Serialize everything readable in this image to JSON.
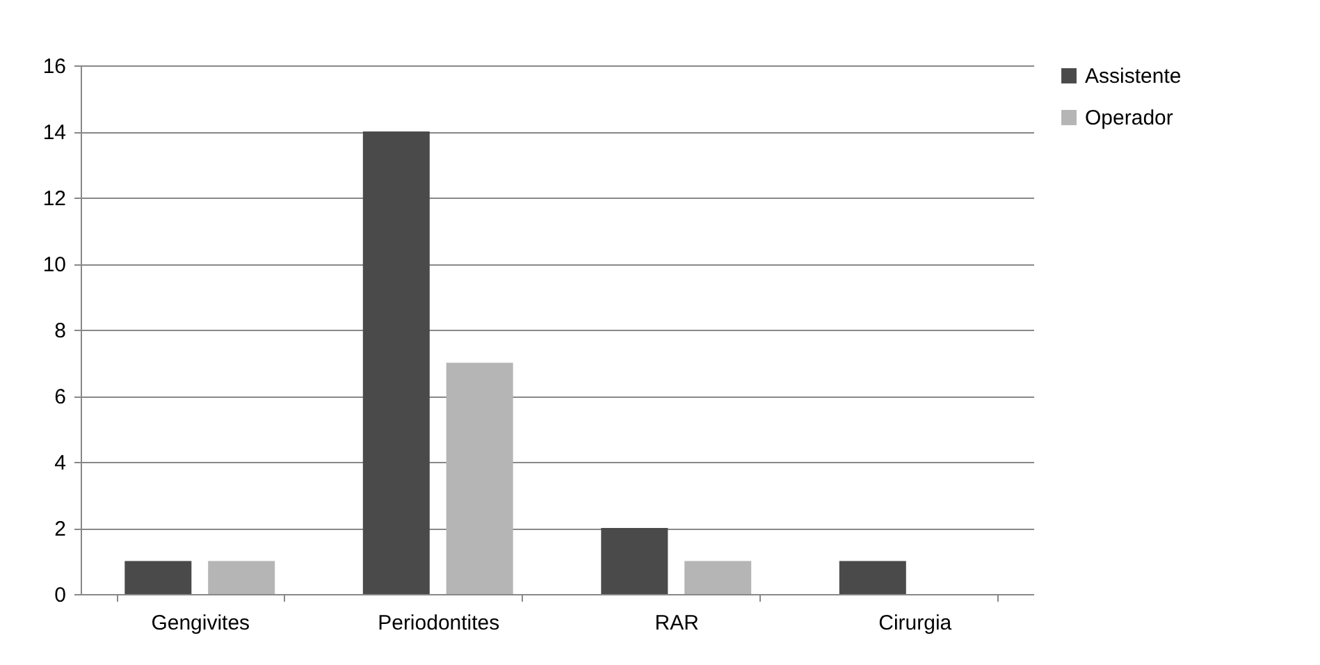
{
  "chart_data": {
    "type": "bar",
    "categories": [
      "Gengivites",
      "Periodontites",
      "RAR",
      "Cirurgia"
    ],
    "series": [
      {
        "name": "Assistente",
        "color": "#4a4a4a",
        "values": [
          1,
          14,
          2,
          1
        ]
      },
      {
        "name": "Operador",
        "color": "#b5b5b5",
        "values": [
          1,
          7,
          1,
          0
        ]
      }
    ],
    "ylim": [
      0,
      16
    ],
    "yticks": [
      0,
      2,
      4,
      6,
      8,
      10,
      12,
      14,
      16
    ],
    "grid": "y",
    "legend": "right"
  }
}
